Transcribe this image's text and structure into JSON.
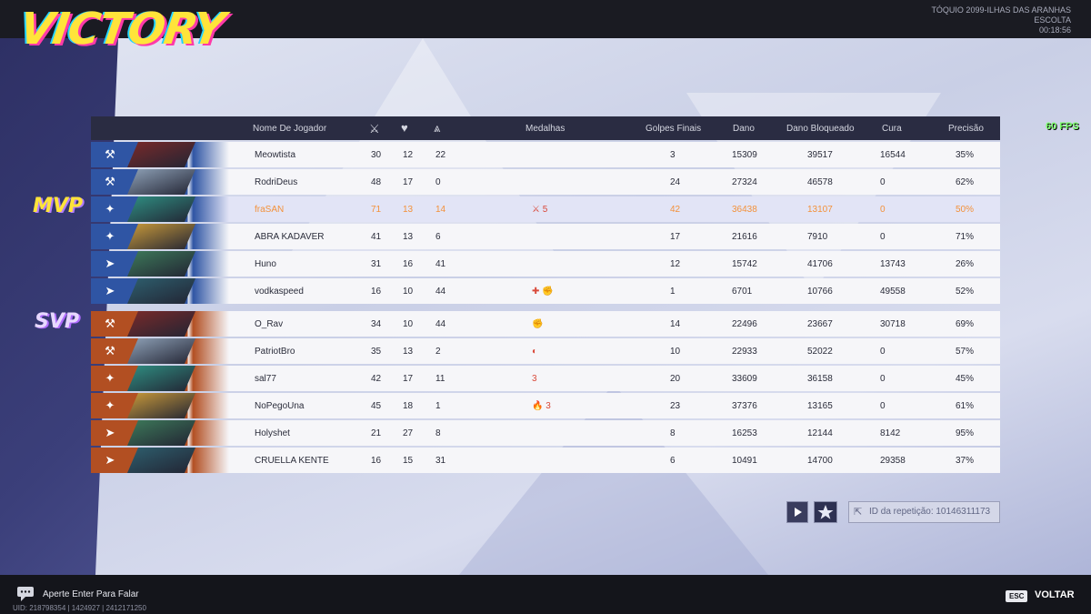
{
  "header": {
    "result": "VICTORY",
    "map": "TÓQUIO 2099-ILHAS DAS ARANHAS",
    "mode": "ESCOLTA",
    "time": "00:18:56",
    "fps": "60 FPS"
  },
  "columns": {
    "player": "Nome De Jogador",
    "medals": "Medalhas",
    "final_hits": "Golpes Finais",
    "damage": "Dano",
    "blocked": "Dano Bloqueado",
    "heal": "Cura",
    "accuracy": "Precisão",
    "kills_icon": "swords-icon",
    "deaths_icon": "broken-heart-icon",
    "assists_icon": "assist-icon"
  },
  "badges": {
    "mvp": "MVP",
    "svp": "SVP"
  },
  "colors": {
    "blue_team": "#2f55a4",
    "orange_team": "#b24f22",
    "highlight": "#f3913a"
  },
  "blue_team": [
    {
      "name": "Meowtista",
      "k": "30",
      "d": "12",
      "a": "22",
      "medals": "",
      "final": "3",
      "dmg": "15309",
      "blk": "39517",
      "heal": "16544",
      "acc": "35%",
      "role": "vanguard"
    },
    {
      "name": "RodriDeus",
      "k": "48",
      "d": "17",
      "a": "0",
      "medals": "",
      "final": "24",
      "dmg": "27324",
      "blk": "46578",
      "heal": "0",
      "acc": "62%",
      "role": "vanguard"
    },
    {
      "name": "fraSAN",
      "k": "71",
      "d": "13",
      "a": "14",
      "medals": "⚔ 5",
      "final": "42",
      "dmg": "36438",
      "blk": "13107",
      "heal": "0",
      "acc": "50%",
      "role": "duelist"
    },
    {
      "name": "ABRA KADAVER",
      "k": "41",
      "d": "13",
      "a": "6",
      "medals": "",
      "final": "17",
      "dmg": "21616",
      "blk": "7910",
      "heal": "0",
      "acc": "71%",
      "role": "duelist"
    },
    {
      "name": "Huno",
      "k": "31",
      "d": "16",
      "a": "41",
      "medals": "",
      "final": "12",
      "dmg": "15742",
      "blk": "41706",
      "heal": "13743",
      "acc": "26%",
      "role": "strategist"
    },
    {
      "name": "vodkaspeed",
      "k": "16",
      "d": "10",
      "a": "44",
      "medals": "✚ ✊",
      "final": "1",
      "dmg": "6701",
      "blk": "10766",
      "heal": "49558",
      "acc": "52%",
      "role": "strategist"
    }
  ],
  "orange_team": [
    {
      "name": "O_Rav",
      "k": "34",
      "d": "10",
      "a": "44",
      "medals": "✊",
      "final": "14",
      "dmg": "22496",
      "blk": "23667",
      "heal": "30718",
      "acc": "69%",
      "role": "vanguard"
    },
    {
      "name": "PatriotBro",
      "k": "35",
      "d": "13",
      "a": "2",
      "medals": "◐",
      "final": "10",
      "dmg": "22933",
      "blk": "52022",
      "heal": "0",
      "acc": "57%",
      "role": "vanguard"
    },
    {
      "name": "sal77",
      "k": "42",
      "d": "17",
      "a": "11",
      "medals": "3",
      "final": "20",
      "dmg": "33609",
      "blk": "36158",
      "heal": "0",
      "acc": "45%",
      "role": "duelist"
    },
    {
      "name": "NoPegoUna",
      "k": "45",
      "d": "18",
      "a": "1",
      "medals": "🔥 3",
      "final": "23",
      "dmg": "37376",
      "blk": "13165",
      "heal": "0",
      "acc": "61%",
      "role": "duelist"
    },
    {
      "name": "Holyshet",
      "k": "21",
      "d": "27",
      "a": "8",
      "medals": "",
      "final": "8",
      "dmg": "16253",
      "blk": "12144",
      "heal": "8142",
      "acc": "95%",
      "role": "strategist"
    },
    {
      "name": "CRUELLA KENTE",
      "k": "16",
      "d": "15",
      "a": "31",
      "medals": "",
      "final": "6",
      "dmg": "10491",
      "blk": "14700",
      "heal": "29358",
      "acc": "37%",
      "role": "strategist"
    }
  ],
  "replay": {
    "label": "ID da repetição: 10146311173"
  },
  "footer": {
    "chat": "Aperte Enter Para Falar",
    "uid": "UID: 218798354 | 1424927 | 2412171250",
    "esc": "ESC",
    "back": "VOLTAR"
  }
}
